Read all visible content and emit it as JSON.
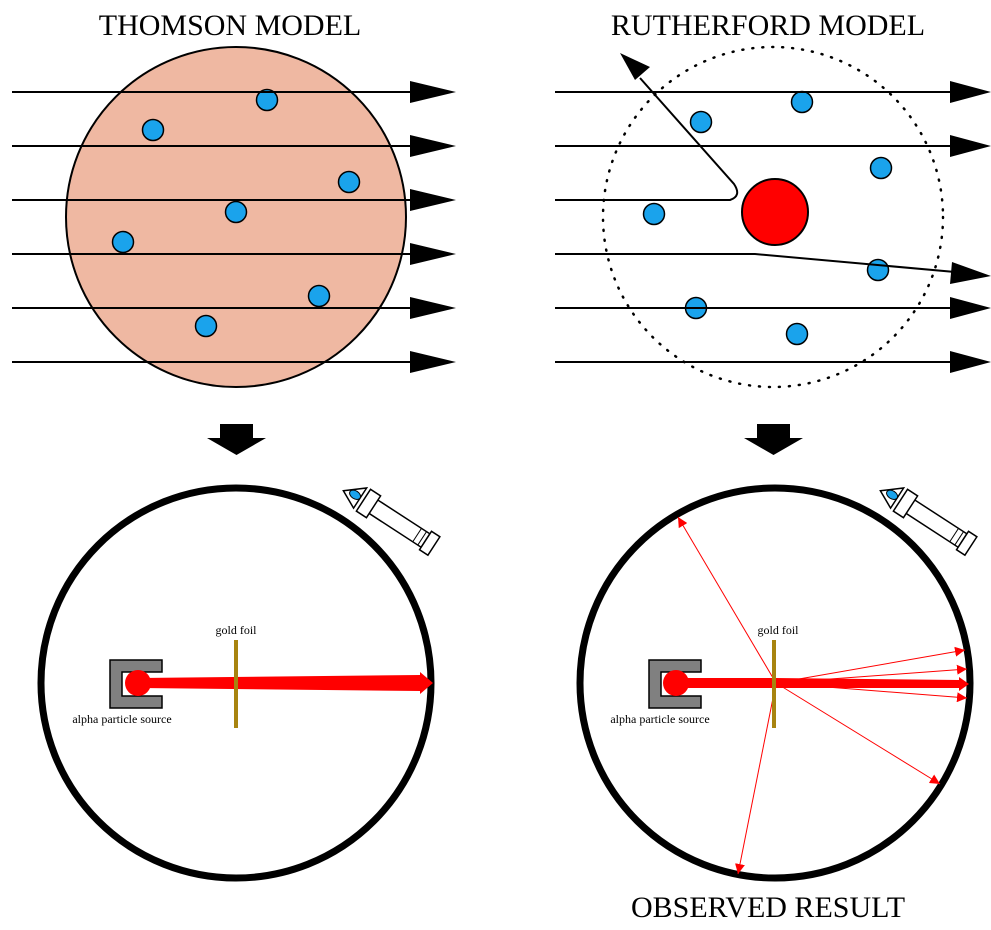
{
  "titles": {
    "thomson": "THOMSON MODEL",
    "rutherford": "RUTHERFORD MODEL",
    "observed": "OBSERVED RESULT"
  },
  "labels": {
    "thomson_foil": "gold foil",
    "thomson_source": "alpha particle source",
    "rutherford_foil": "gold foil",
    "rutherford_source": "alpha particle source"
  },
  "colors": {
    "thomson_atom": "#efb8a2",
    "electron": "#1aa3ec",
    "nucleus": "#ff0000",
    "alpha_beam": "#ff0000",
    "gold_foil": "#a88410",
    "source_housing": "#808080"
  },
  "icons": [
    "down-arrow-icon",
    "microscope-icon",
    "eye-icon"
  ]
}
